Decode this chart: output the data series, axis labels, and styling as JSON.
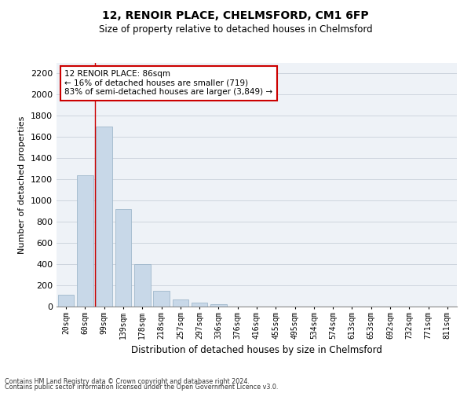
{
  "title": "12, RENOIR PLACE, CHELMSFORD, CM1 6FP",
  "subtitle": "Size of property relative to detached houses in Chelmsford",
  "xlabel": "Distribution of detached houses by size in Chelmsford",
  "ylabel": "Number of detached properties",
  "bar_color": "#c8d8e8",
  "bar_edge_color": "#a0b8cc",
  "categories": [
    "20sqm",
    "60sqm",
    "99sqm",
    "139sqm",
    "178sqm",
    "218sqm",
    "257sqm",
    "297sqm",
    "336sqm",
    "376sqm",
    "416sqm",
    "455sqm",
    "495sqm",
    "534sqm",
    "574sqm",
    "613sqm",
    "653sqm",
    "692sqm",
    "732sqm",
    "771sqm",
    "811sqm"
  ],
  "values": [
    110,
    1240,
    1700,
    920,
    400,
    150,
    65,
    35,
    25,
    0,
    0,
    0,
    0,
    0,
    0,
    0,
    0,
    0,
    0,
    0,
    0
  ],
  "ylim": [
    0,
    2300
  ],
  "yticks": [
    0,
    200,
    400,
    600,
    800,
    1000,
    1200,
    1400,
    1600,
    1800,
    2000,
    2200
  ],
  "property_line_x": 1.5,
  "annotation_text": "12 RENOIR PLACE: 86sqm\n← 16% of detached houses are smaller (719)\n83% of semi-detached houses are larger (3,849) →",
  "annotation_box_color": "#ffffff",
  "annotation_box_edge": "#cc0000",
  "footer1": "Contains HM Land Registry data © Crown copyright and database right 2024.",
  "footer2": "Contains public sector information licensed under the Open Government Licence v3.0.",
  "bg_color": "#eef2f7",
  "grid_color": "#c8d0da",
  "title_fontsize": 10,
  "subtitle_fontsize": 8.5,
  "ylabel_fontsize": 8,
  "xlabel_fontsize": 8.5,
  "ytick_fontsize": 8,
  "xtick_fontsize": 7,
  "annot_fontsize": 7.5,
  "footer_fontsize": 5.8
}
